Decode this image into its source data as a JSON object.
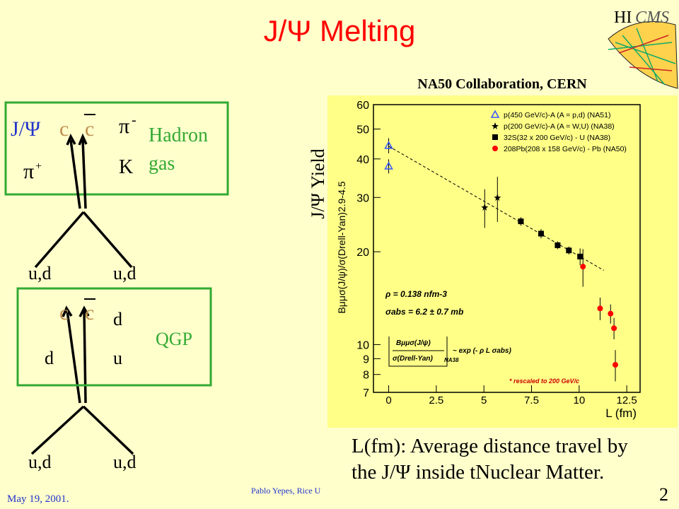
{
  "slide": {
    "title": "J/Ψ Melting",
    "logo": {
      "hi": "HI",
      "cms": "CMS"
    },
    "hadron_box": {
      "jpsi": "J/Ψ",
      "c": "c",
      "cbar": "c",
      "pi_minus": {
        "symbol": "π",
        "charge": "-"
      },
      "pi_plus": {
        "symbol": "π",
        "charge": "+"
      },
      "k": "K",
      "label_1": "Hadron",
      "label_2": "gas"
    },
    "upper_quarks": [
      "u,d",
      "u,d"
    ],
    "qgp_box": {
      "c": "c",
      "cbar": "c",
      "d_top": "d",
      "label": "QGP",
      "d_left": "d",
      "u": "u"
    },
    "lower_quarks": [
      "u,d",
      "u,d"
    ],
    "caption": [
      "L(fm): Average distance travel by",
      "the J/Ψ inside tNuclear Matter."
    ],
    "footer": {
      "date": "May 19, 2001.",
      "author": "Pablo Yepes, Rice U",
      "page": "2"
    }
  },
  "chart_data": {
    "type": "scatter",
    "title": "NA50 Collaboration, CERN",
    "y_label_outer": "J/Ψ Yield",
    "y_label": "Bμμσ(J/ψ)/σ(Drell-Yan)2.9-4.5",
    "x_label": "L (fm)",
    "log_y": true,
    "xlim": [
      -0.8,
      13.2
    ],
    "ylim": [
      7,
      60
    ],
    "xticks": [
      0,
      2.5,
      5,
      7.5,
      10,
      12.5
    ],
    "yticks": [
      7,
      8,
      9,
      10,
      20,
      30,
      40,
      50,
      60
    ],
    "series": [
      {
        "name": "p(450 GeV/c)-A (A = p,d) (NA51)",
        "color": "#3355ff",
        "marker": "triangle-open",
        "x": [
          0,
          0
        ],
        "values": [
          44.2,
          37.9
        ],
        "errors": [
          2.5,
          2
        ]
      },
      {
        "name": "p(200 GeV/c)-A (A = W,U) (NA38)",
        "color": "#000000",
        "marker": "star",
        "x": [
          5.04,
          5.71
        ],
        "values": [
          27.9,
          30
        ],
        "errors": [
          4,
          5
        ]
      },
      {
        "name": "32S(32 x 200 GeV/c) - U (NA38)",
        "color": "#000000",
        "marker": "square",
        "x": [
          6.94,
          8,
          8.87,
          9.46,
          10.05
        ],
        "values": [
          25.1,
          22.9,
          21,
          20.2,
          19.3
        ],
        "errors": [
          0.8,
          0.8,
          0.6,
          0.6,
          1.2
        ]
      },
      {
        "name": "208Pb(208 x 158 GeV/c) - Pb (NA50)",
        "color": "#ff0000",
        "marker": "circle",
        "x": [
          10.2,
          11.1,
          11.65,
          11.83,
          11.9
        ],
        "values": [
          17.9,
          13.1,
          12.6,
          11.3,
          8.6
        ],
        "errors": [
          2.5,
          1.1,
          0.9,
          0.9,
          1
        ]
      },
      {
        "color": "#000000",
        "marker": "dashed-line",
        "x": [
          0,
          11.3
        ],
        "values": [
          44,
          17.4
        ]
      }
    ],
    "annotations": [
      "ρ = 0.138 nfm-3",
      "σabs = 6.2 ± 0.7 mb",
      "Bμμσ(J/ψ)",
      "σ(Drell-Yan)",
      "~ exp (- ρ L σabs)",
      "NA38",
      "* rescaled to 200 GeV/c"
    ]
  }
}
